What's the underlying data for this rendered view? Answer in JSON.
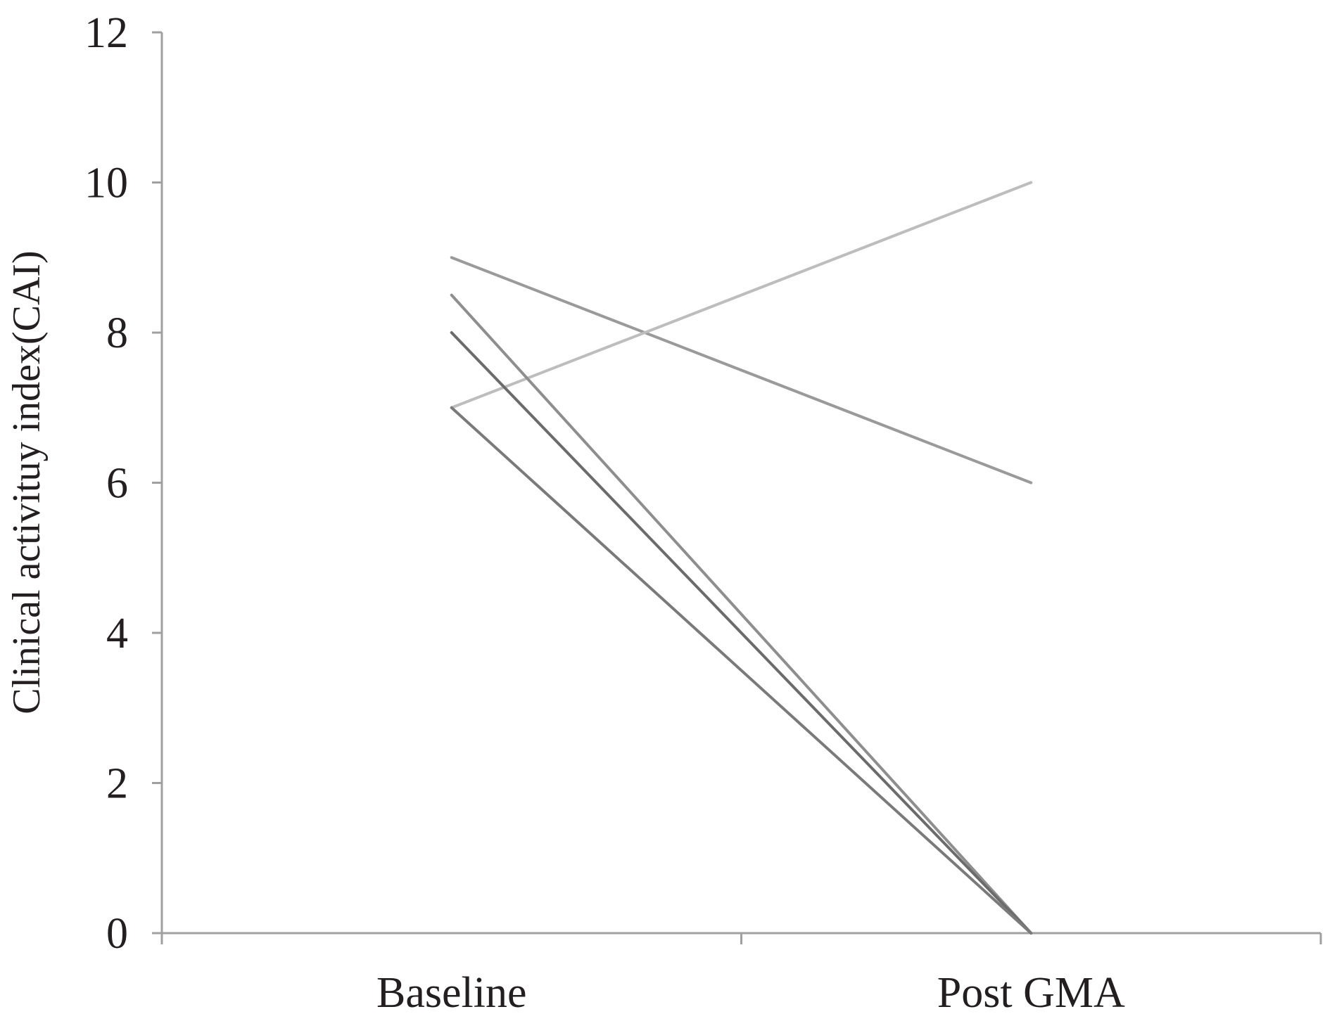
{
  "chart_data": {
    "type": "line",
    "title": "",
    "xlabel": "",
    "ylabel": "Clinical activituy index(CAI)",
    "categories": [
      "Baseline",
      "Post GMA"
    ],
    "ylim": [
      0,
      12
    ],
    "yticks": [
      "0",
      "2",
      "4",
      "6",
      "8",
      "10",
      "12"
    ],
    "grid": false,
    "legend": "none",
    "series": [
      {
        "values": [
          9,
          6
        ],
        "color": "#9a9a9a"
      },
      {
        "values": [
          7,
          10
        ],
        "color": "#bdbdbd"
      },
      {
        "values": [
          8.5,
          0
        ],
        "color": "#8e8e8e"
      },
      {
        "values": [
          8,
          0
        ],
        "color": "#6b6b6b"
      },
      {
        "values": [
          7,
          0
        ],
        "color": "#7a7a7a"
      }
    ]
  }
}
